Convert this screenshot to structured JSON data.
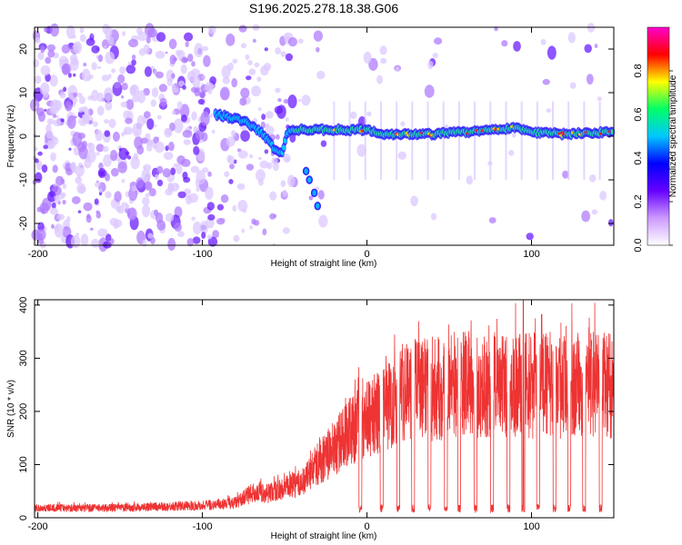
{
  "title": "S196.2025.278.18.38.G06",
  "chart_data": [
    {
      "type": "heatmap",
      "name": "spectrogram",
      "xlabel": "Height of straight line (km)",
      "ylabel": "Frequency (Hz)",
      "xlim": [
        -202,
        150
      ],
      "ylim": [
        -25,
        25
      ],
      "xticks": [
        -200,
        -100,
        0,
        100
      ],
      "xtick_labels": [
        "-200",
        "-100",
        "0",
        "100"
      ],
      "yticks": [
        -20,
        -10,
        0,
        10,
        20
      ],
      "ytick_labels": [
        "-20",
        "-10",
        "0",
        "10",
        "20"
      ],
      "colorbar": {
        "label": "Normalized spectral amplitude",
        "range": [
          0,
          1
        ],
        "ticks": [
          0,
          0.2,
          0.4,
          0.6,
          0.8
        ],
        "tick_labels": [
          "0.0",
          "0.2",
          "0.4",
          "0.6",
          "0.8"
        ],
        "colors": [
          "#ffffff",
          "#cc99ff",
          "#6600ff",
          "#0000ff",
          "#00c8ff",
          "#00ff66",
          "#ffff00",
          "#ff0000",
          "#ff00cc"
        ]
      },
      "signal_trace": {
        "x": [
          -92,
          -85,
          -75,
          -68,
          -62,
          -56,
          -52,
          -48,
          -45,
          -40,
          -30,
          -20,
          -10,
          0,
          10,
          20,
          40,
          60,
          80,
          90,
          100,
          120,
          150
        ],
        "y": [
          5,
          4.5,
          3.5,
          2,
          0,
          -3,
          -4,
          1,
          1.5,
          1.5,
          1.5,
          1.5,
          1.5,
          1.5,
          0.5,
          0.5,
          0.5,
          1,
          1.5,
          2,
          1,
          0.5,
          1
        ]
      },
      "secondary_trace": {
        "x": [
          -37,
          -35,
          -32,
          -30
        ],
        "y": [
          -8,
          -10,
          -13,
          -16
        ]
      }
    },
    {
      "type": "line",
      "name": "snr",
      "xlabel": "Height of straight line (km)",
      "ylabel": "SNR (10 * v/v)",
      "xlim": [
        -202,
        150
      ],
      "ylim": [
        0,
        410
      ],
      "xticks": [
        -200,
        -100,
        0,
        100
      ],
      "xtick_labels": [
        "-200",
        "-100",
        "0",
        "100"
      ],
      "yticks": [
        0,
        100,
        200,
        300,
        400
      ],
      "ytick_labels": [
        "0",
        "100",
        "200",
        "300",
        "400"
      ],
      "line_color": "#ee3333",
      "envelope": {
        "x": [
          -202,
          -150,
          -100,
          -80,
          -70,
          -60,
          -50,
          -40,
          -30,
          -20,
          -10,
          0,
          10,
          20,
          30,
          40,
          60,
          80,
          100,
          120,
          150
        ],
        "y": [
          20,
          20,
          25,
          30,
          50,
          50,
          60,
          70,
          110,
          140,
          180,
          200,
          220,
          250,
          260,
          260,
          270,
          270,
          270,
          270,
          270
        ]
      },
      "dropouts_x": [
        -4,
        9,
        19,
        28,
        38,
        48,
        56,
        66,
        76,
        86,
        95,
        104,
        114,
        123,
        132,
        142
      ],
      "peak": {
        "x": 95,
        "y": 410
      }
    }
  ]
}
